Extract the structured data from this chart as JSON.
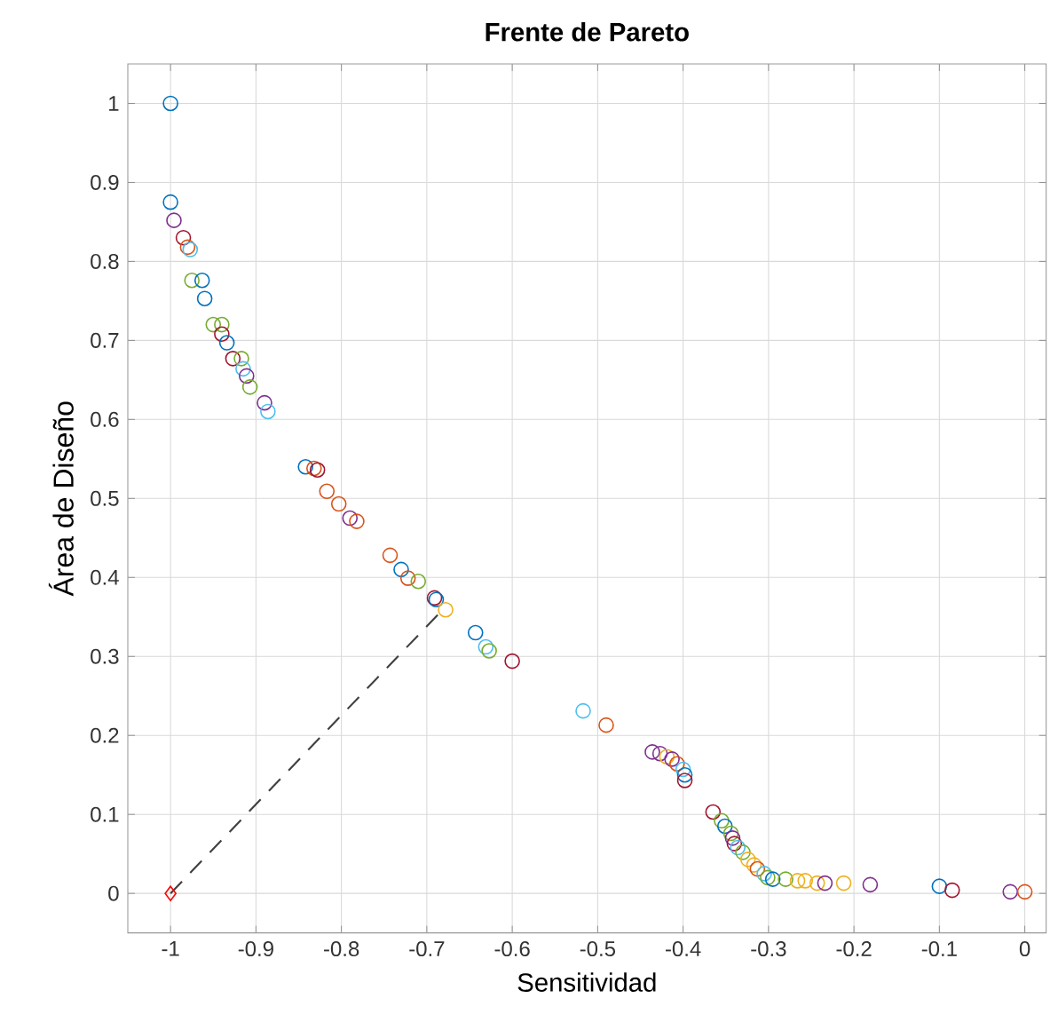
{
  "chart_data": {
    "type": "scatter",
    "title": "Frente de Pareto",
    "xlabel": "Sensitividad",
    "ylabel": "Área de Diseño",
    "xlim": [
      -1.05,
      0.025
    ],
    "ylim": [
      -0.05,
      1.05
    ],
    "xticks": [
      -1,
      -0.9,
      -0.8,
      -0.7,
      -0.6,
      -0.5,
      -0.4,
      -0.3,
      -0.2,
      -0.1,
      0
    ],
    "yticks": [
      0,
      0.1,
      0.2,
      0.3,
      0.4,
      0.5,
      0.6,
      0.7,
      0.8,
      0.9,
      1
    ],
    "grid": true,
    "marker": "circle",
    "series": [
      {
        "x": [
          -1.0,
          -1.0,
          -0.996,
          -0.985,
          -0.98,
          -0.977,
          -0.975,
          -0.963,
          -0.96,
          -0.95,
          -0.94,
          -0.94,
          -0.934,
          -0.927,
          -0.917,
          -0.915,
          -0.911,
          -0.907,
          -0.89,
          -0.886,
          -0.842,
          -0.832,
          -0.828,
          -0.817,
          -0.803,
          -0.79,
          -0.782,
          -0.743,
          -0.73,
          -0.722,
          -0.71,
          -0.691,
          -0.689,
          -0.678,
          -0.643,
          -0.631,
          -0.627,
          -0.6,
          -0.517,
          -0.49,
          -0.436,
          -0.427,
          -0.419,
          -0.413,
          -0.407,
          -0.4,
          -0.398,
          -0.398,
          -0.365,
          -0.355,
          -0.351,
          -0.344,
          -0.342,
          -0.34,
          -0.336,
          -0.33,
          -0.324,
          -0.317,
          -0.313,
          -0.305,
          -0.301,
          -0.295,
          -0.28,
          -0.266,
          -0.257,
          -0.243,
          -0.234,
          -0.212,
          -0.181,
          -0.1,
          -0.085,
          -0.017,
          0.0
        ],
        "values": [
          1.0,
          0.875,
          0.852,
          0.83,
          0.818,
          0.815,
          0.776,
          0.776,
          0.753,
          0.72,
          0.72,
          0.708,
          0.697,
          0.677,
          0.677,
          0.664,
          0.655,
          0.641,
          0.621,
          0.61,
          0.54,
          0.538,
          0.536,
          0.509,
          0.493,
          0.475,
          0.471,
          0.428,
          0.41,
          0.399,
          0.395,
          0.374,
          0.372,
          0.359,
          0.33,
          0.312,
          0.307,
          0.294,
          0.231,
          0.213,
          0.179,
          0.177,
          0.173,
          0.17,
          0.164,
          0.157,
          0.15,
          0.143,
          0.103,
          0.092,
          0.085,
          0.076,
          0.07,
          0.063,
          0.058,
          0.052,
          0.043,
          0.036,
          0.031,
          0.025,
          0.02,
          0.018,
          0.018,
          0.016,
          0.016,
          0.013,
          0.013,
          0.013,
          0.011,
          0.009,
          0.004,
          0.002,
          0.002
        ],
        "colors": [
          "#0072bd",
          "#0072bd",
          "#7e2f8e",
          "#a2142f",
          "#d95319",
          "#4dbeee",
          "#77ac30",
          "#0072bd",
          "#0072bd",
          "#77ac30",
          "#77ac30",
          "#a2142f",
          "#0072bd",
          "#a2142f",
          "#77ac30",
          "#4dbeee",
          "#7e2f8e",
          "#77ac30",
          "#7e2f8e",
          "#4dbeee",
          "#0072bd",
          "#d95319",
          "#a2142f",
          "#d95319",
          "#d95319",
          "#7e2f8e",
          "#d95319",
          "#d95319",
          "#0072bd",
          "#d95319",
          "#77ac30",
          "#a2142f",
          "#0072bd",
          "#edb120",
          "#0072bd",
          "#4dbeee",
          "#77ac30",
          "#a2142f",
          "#4dbeee",
          "#d95319",
          "#7e2f8e",
          "#7e2f8e",
          "#edb120",
          "#7e2f8e",
          "#d95319",
          "#4dbeee",
          "#0072bd",
          "#a2142f",
          "#a2142f",
          "#77ac30",
          "#0072bd",
          "#77ac30",
          "#7e2f8e",
          "#a2142f",
          "#4dbeee",
          "#77ac30",
          "#edb120",
          "#edb120",
          "#d95319",
          "#4dbeee",
          "#77ac30",
          "#0072bd",
          "#77ac30",
          "#edb120",
          "#edb120",
          "#edb120",
          "#7e2f8e",
          "#edb120",
          "#7e2f8e",
          "#0072bd",
          "#a2142f",
          "#7e2f8e",
          "#d95319"
        ]
      },
      {
        "type": "line",
        "line_style": "dashed",
        "marker": "none",
        "color": "#404040",
        "x": [
          -1.0,
          -0.685
        ],
        "values": [
          0.0,
          0.355
        ]
      },
      {
        "type": "scatter",
        "marker": "diamond",
        "color": "#ff0000",
        "x": [
          -1.0
        ],
        "values": [
          0.0
        ]
      }
    ]
  }
}
